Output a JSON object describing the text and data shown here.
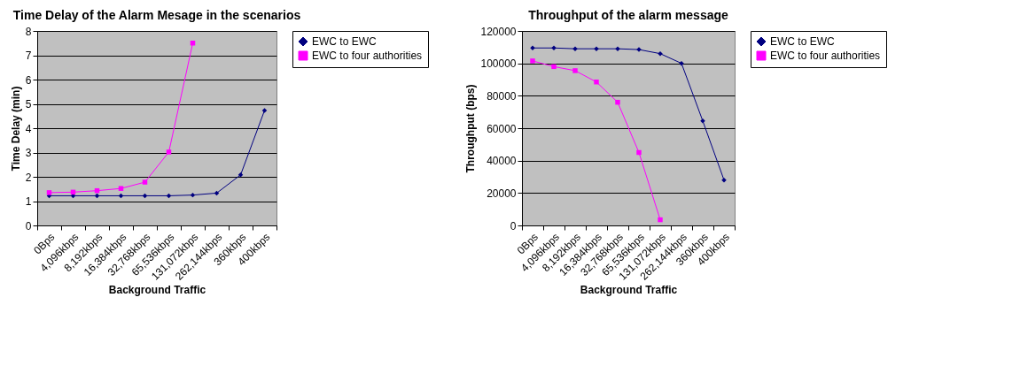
{
  "chart_data": [
    {
      "type": "line",
      "title": "Time Delay of the Alarm Mesage in the scenarios",
      "xlabel": "Background Traffic",
      "ylabel": "Time Delay (min)",
      "categories": [
        "0Bps",
        "4,096kbps",
        "8,192kbps",
        "16,384kbps",
        "32,768kbps",
        "65,536kbps",
        "131,072kbps",
        "262,144kbps",
        "360kbps",
        "400kbps"
      ],
      "series": [
        {
          "name": "EWC to EWC",
          "color": "#000080",
          "marker": "diamond",
          "values": [
            1.22,
            1.22,
            1.22,
            1.22,
            1.22,
            1.22,
            1.25,
            1.33,
            2.08,
            4.73
          ]
        },
        {
          "name": "EWC to four authorities",
          "color": "#ff00ff",
          "marker": "square",
          "values": [
            1.35,
            1.37,
            1.43,
            1.52,
            1.78,
            3.02,
            7.5,
            null,
            null,
            null
          ]
        }
      ],
      "ylim": [
        0,
        8
      ],
      "yticks": [
        0,
        1,
        2,
        3,
        4,
        5,
        6,
        7,
        8
      ],
      "grid": "y",
      "legend": "right",
      "line_style": "solid"
    },
    {
      "type": "line",
      "title": "Throughput of the alarm message",
      "xlabel": "Background Traffic",
      "ylabel": "Throughput (bps)",
      "categories": [
        "0Bps",
        "4,096kbps",
        "8,192kbps",
        "16,384kbps",
        "32,768kbps",
        "65,536kbps",
        "131,072kbps",
        "262,144kbps",
        "360kbps",
        "400kbps"
      ],
      "series": [
        {
          "name": "EWC to EWC",
          "color": "#000080",
          "marker": "diamond",
          "values": [
            109500,
            109500,
            109000,
            109000,
            109000,
            108500,
            106000,
            100000,
            64500,
            28000
          ]
        },
        {
          "name": "EWC to four authorities",
          "color": "#ff00ff",
          "marker": "square",
          "values": [
            101500,
            98000,
            95500,
            88500,
            76000,
            45000,
            3500,
            null,
            null,
            null
          ]
        }
      ],
      "ylim": [
        0,
        120000
      ],
      "yticks": [
        0,
        20000,
        40000,
        60000,
        80000,
        100000,
        120000
      ],
      "grid": "y",
      "legend": "right",
      "line_style": "solid"
    }
  ]
}
